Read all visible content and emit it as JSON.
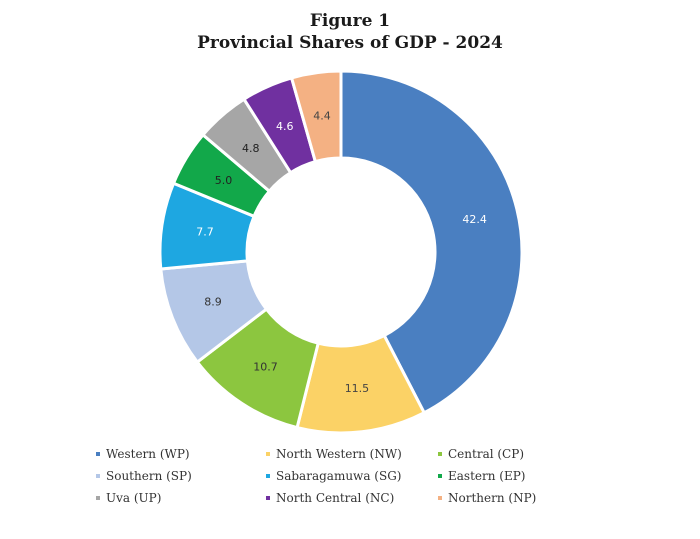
{
  "chart_data": {
    "type": "pie",
    "title": "Figure 1",
    "subtitle": "Provincial Shares of GDP - 2024",
    "donut": true,
    "legend_position": "bottom",
    "slices": [
      {
        "name": "Western (WP)",
        "value": 42.4,
        "label": "42.4",
        "color": "#4a7fc1",
        "label_color": "#ffffff"
      },
      {
        "name": "North Western (NW)",
        "value": 11.5,
        "label": "11.5",
        "color": "#fbd266",
        "label_color": "#444444"
      },
      {
        "name": "Central (CP)",
        "value": 10.7,
        "label": "10.7",
        "color": "#8cc63f",
        "label_color": "#333333"
      },
      {
        "name": "Southern (SP)",
        "value": 8.9,
        "label": "8.9",
        "color": "#b4c7e7",
        "label_color": "#333333"
      },
      {
        "name": "Sabaragamuwa (SG)",
        "value": 7.7,
        "label": "7.7",
        "color": "#1ea7e1",
        "label_color": "#ffffff"
      },
      {
        "name": "Eastern (EP)",
        "value": 5.0,
        "label": "5.0",
        "color": "#12a84a",
        "label_color": "#222222"
      },
      {
        "name": "Uva (UP)",
        "value": 4.8,
        "label": "4.8",
        "color": "#a6a6a6",
        "label_color": "#222222"
      },
      {
        "name": "North Central (NC)",
        "value": 4.6,
        "label": "4.6",
        "color": "#7030a0",
        "label_color": "#ffffff"
      },
      {
        "name": "Northern (NP)",
        "value": 4.4,
        "label": "4.4",
        "color": "#f4b183",
        "label_color": "#444444"
      }
    ],
    "legend_order": [
      "Western (WP)",
      "North Western (NW)",
      "Central (CP)",
      "Southern (SP)",
      "Sabaragamuwa (SG)",
      "Eastern (EP)",
      "Uva (UP)",
      "North Central (NC)",
      "Northern (NP)"
    ]
  }
}
